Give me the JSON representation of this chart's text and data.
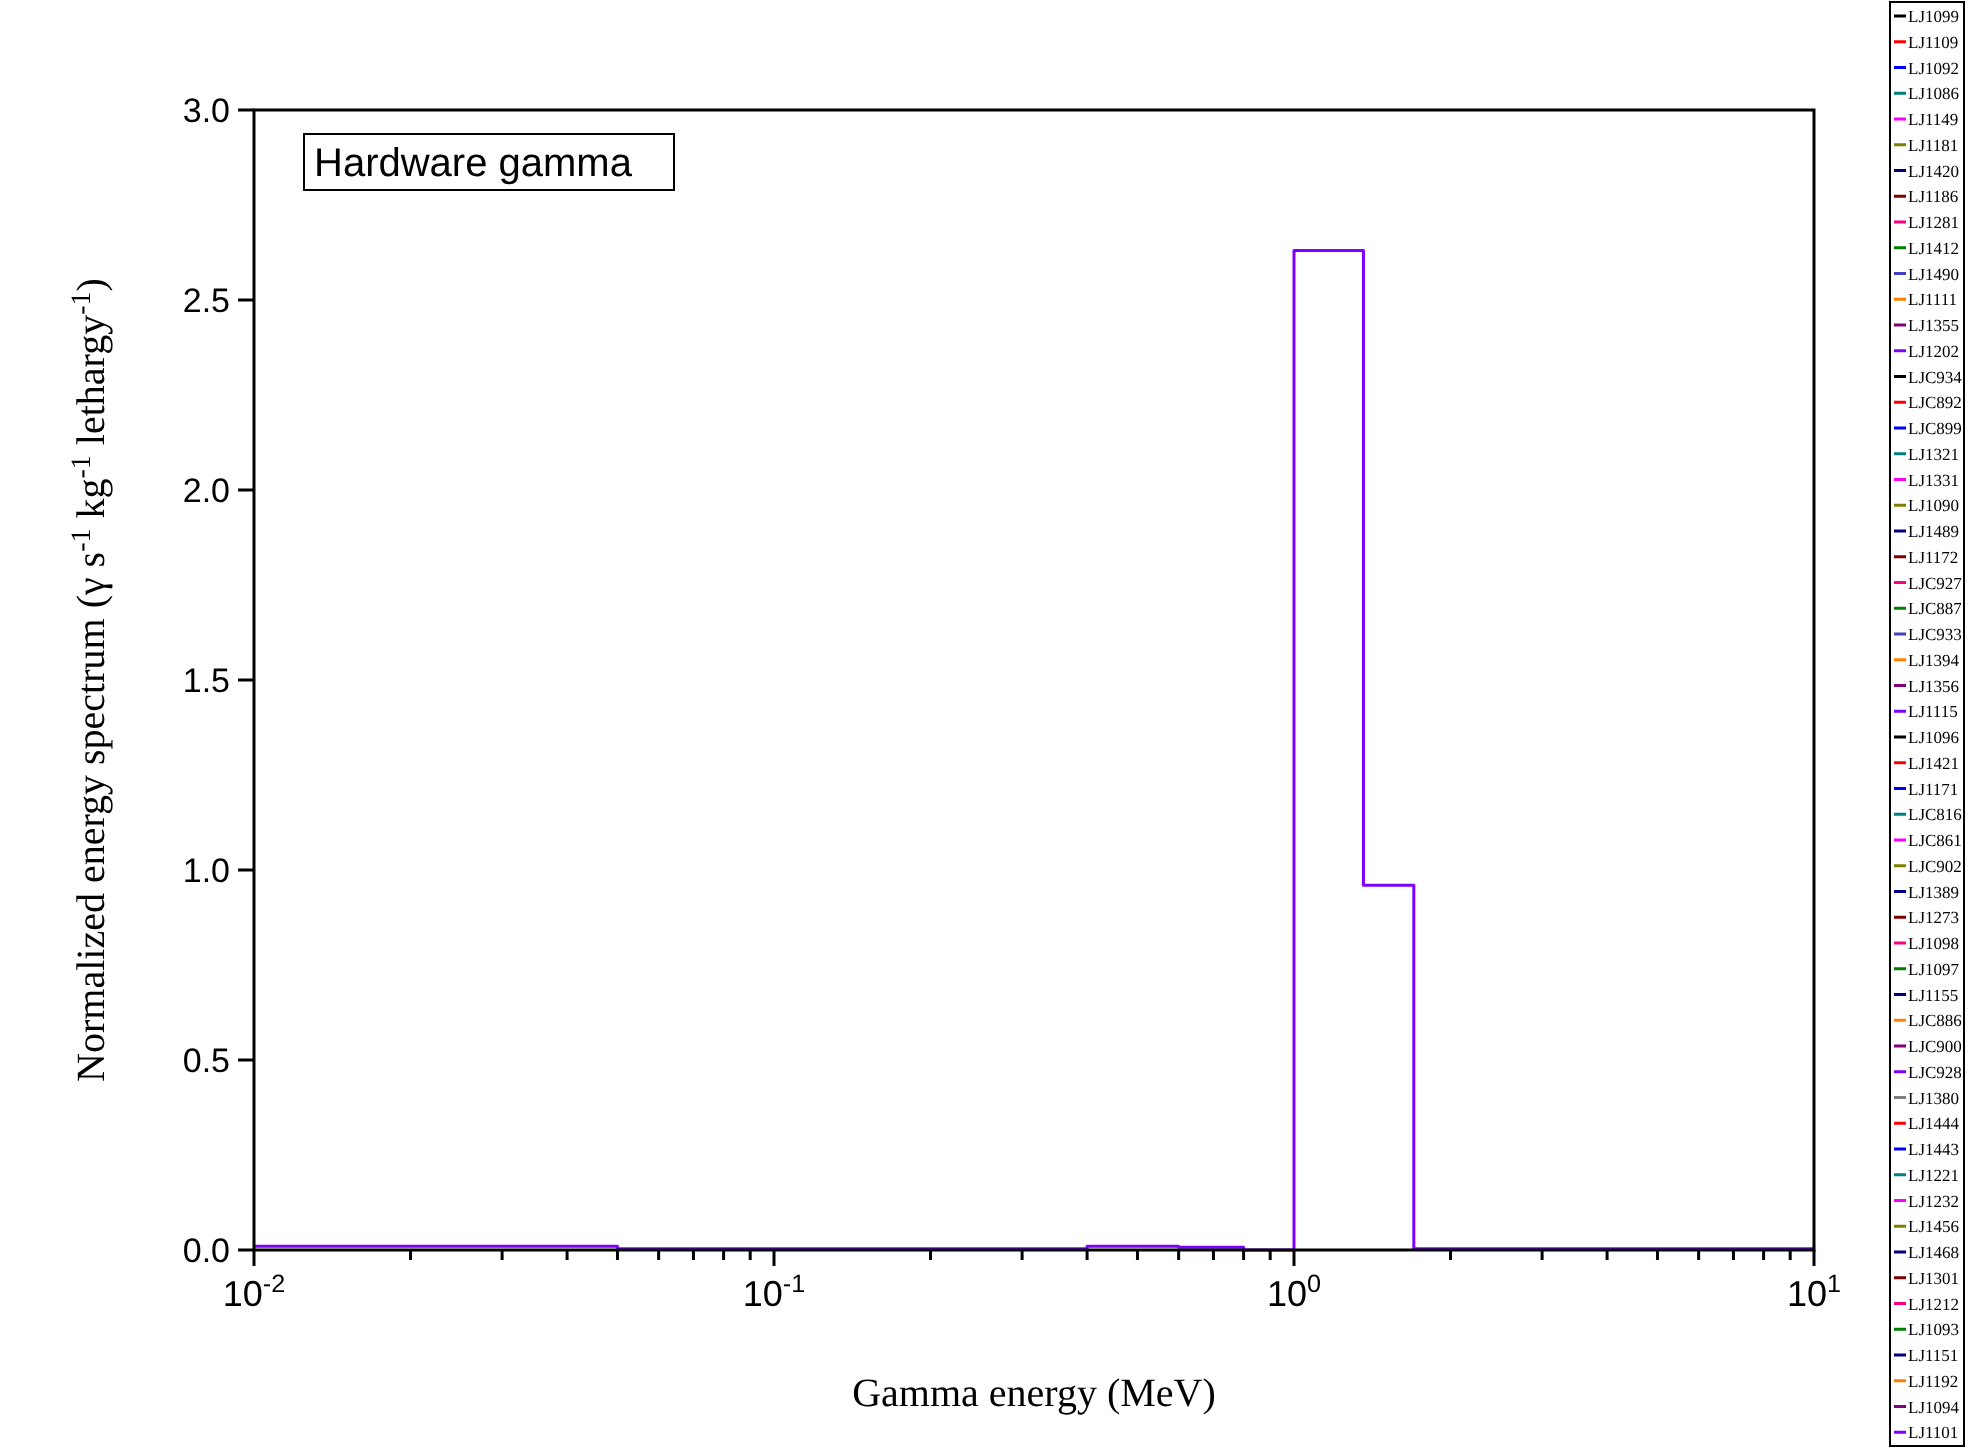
{
  "chart_data": {
    "type": "step",
    "xlabel": "Gamma energy (MeV)",
    "ylabel": "Normalized energy spectrum (γ s$^{-1}$ kg$^{-1}$ lethargy$^{-1}$)",
    "annotations": [
      "Hardware gamma"
    ],
    "log": "x",
    "grid": false,
    "legend": "right",
    "marker": "none",
    "line_style": "solid",
    "xlim": [
      0.01,
      10
    ],
    "xticks": [
      {
        "value": 0.01,
        "label": "10$^{-2}$"
      },
      {
        "value": 0.02,
        "label": null
      },
      {
        "value": 0.03,
        "label": null
      },
      {
        "value": 0.04,
        "label": null
      },
      {
        "value": 0.05,
        "label": null
      },
      {
        "value": 0.06,
        "label": null
      },
      {
        "value": 0.07,
        "label": null
      },
      {
        "value": 0.08,
        "label": null
      },
      {
        "value": 0.09,
        "label": null
      },
      {
        "value": 0.1,
        "label": "10$^{-1}$"
      },
      {
        "value": 0.2,
        "label": null
      },
      {
        "value": 0.3,
        "label": null
      },
      {
        "value": 0.4,
        "label": null
      },
      {
        "value": 0.5,
        "label": null
      },
      {
        "value": 0.6,
        "label": null
      },
      {
        "value": 0.7,
        "label": null
      },
      {
        "value": 0.8,
        "label": null
      },
      {
        "value": 0.9,
        "label": null
      },
      {
        "value": 1,
        "label": "10$^{0}$"
      },
      {
        "value": 2,
        "label": null
      },
      {
        "value": 3,
        "label": null
      },
      {
        "value": 4,
        "label": null
      },
      {
        "value": 5,
        "label": null
      },
      {
        "value": 6,
        "label": null
      },
      {
        "value": 7,
        "label": null
      },
      {
        "value": 8,
        "label": null
      },
      {
        "value": 9,
        "label": null
      },
      {
        "value": 10,
        "label": "10$^{1}$"
      }
    ],
    "ylim": [
      0,
      3
    ],
    "yticks": [
      {
        "value": 0,
        "label": "0.0"
      },
      {
        "value": 0.5,
        "label": "0.5"
      },
      {
        "value": 1,
        "label": "1.0"
      },
      {
        "value": 1.5,
        "label": "1.5"
      },
      {
        "value": 2,
        "label": "2.0"
      },
      {
        "value": 2.5,
        "label": "2.5"
      },
      {
        "value": 3,
        "label": "3.0"
      }
    ],
    "x": [
      0.01,
      0.05,
      0.4,
      0.6,
      0.8,
      1.0,
      1.36,
      1.7,
      10
    ],
    "series": [
      {
        "name": "LJ1099",
        "color": "#000000",
        "values": [
          null,
          null,
          null,
          null,
          null,
          null,
          null,
          null,
          null
        ]
      },
      {
        "name": "LJ1109",
        "color": "#ff0000",
        "values": [
          null,
          null,
          null,
          null,
          null,
          null,
          null,
          null,
          null
        ]
      },
      {
        "name": "LJ1092",
        "color": "#0000ff",
        "values": [
          null,
          null,
          null,
          null,
          null,
          null,
          null,
          null,
          null
        ]
      },
      {
        "name": "LJ1086",
        "color": "#008080",
        "values": [
          null,
          null,
          null,
          null,
          null,
          null,
          null,
          null,
          null
        ]
      },
      {
        "name": "LJ1149",
        "color": "#ff00ff",
        "values": [
          null,
          null,
          null,
          null,
          null,
          null,
          null,
          null,
          null
        ]
      },
      {
        "name": "LJ1181",
        "color": "#808000",
        "values": [
          null,
          null,
          null,
          null,
          null,
          null,
          null,
          null,
          null
        ]
      },
      {
        "name": "LJ1420",
        "color": "#000080",
        "values": [
          null,
          null,
          null,
          null,
          null,
          null,
          null,
          null,
          null
        ]
      },
      {
        "name": "LJ1186",
        "color": "#800000",
        "values": [
          null,
          null,
          null,
          null,
          null,
          null,
          null,
          null,
          null
        ]
      },
      {
        "name": "LJ1281",
        "color": "#ff0080",
        "values": [
          null,
          null,
          null,
          null,
          null,
          null,
          null,
          null,
          null
        ]
      },
      {
        "name": "LJ1412",
        "color": "#008000",
        "values": [
          null,
          null,
          null,
          null,
          null,
          null,
          null,
          null,
          null
        ]
      },
      {
        "name": "LJ1490",
        "color": "#4040c0",
        "values": [
          null,
          null,
          null,
          null,
          null,
          null,
          null,
          null,
          null
        ]
      },
      {
        "name": "LJ1111",
        "color": "#ff8000",
        "values": [
          null,
          null,
          null,
          null,
          null,
          null,
          null,
          null,
          null
        ]
      },
      {
        "name": "LJ1355",
        "color": "#800080",
        "values": [
          null,
          null,
          null,
          null,
          null,
          null,
          null,
          null,
          null
        ]
      },
      {
        "name": "LJ1202",
        "color": "#8000ff",
        "values": [
          null,
          null,
          null,
          null,
          null,
          null,
          null,
          null,
          null
        ]
      },
      {
        "name": "LJC934",
        "color": "#000000",
        "values": [
          null,
          null,
          null,
          null,
          null,
          null,
          null,
          null,
          null
        ]
      },
      {
        "name": "LJC892",
        "color": "#ff0000",
        "values": [
          null,
          null,
          null,
          null,
          null,
          null,
          null,
          null,
          null
        ]
      },
      {
        "name": "LJC899",
        "color": "#0000ff",
        "values": [
          null,
          null,
          null,
          null,
          null,
          null,
          null,
          null,
          null
        ]
      },
      {
        "name": "LJ1321",
        "color": "#008080",
        "values": [
          null,
          null,
          null,
          null,
          null,
          null,
          null,
          null,
          null
        ]
      },
      {
        "name": "LJ1331",
        "color": "#ff00ff",
        "values": [
          null,
          null,
          null,
          null,
          null,
          null,
          null,
          null,
          null
        ]
      },
      {
        "name": "LJ1090",
        "color": "#808000",
        "values": [
          null,
          null,
          null,
          null,
          null,
          null,
          null,
          null,
          null
        ]
      },
      {
        "name": "LJ1489",
        "color": "#000080",
        "values": [
          null,
          null,
          null,
          null,
          null,
          null,
          null,
          null,
          null
        ]
      },
      {
        "name": "LJ1172",
        "color": "#800000",
        "values": [
          null,
          null,
          null,
          null,
          null,
          null,
          null,
          null,
          null
        ]
      },
      {
        "name": "LJC927",
        "color": "#ff0080",
        "values": [
          null,
          null,
          null,
          null,
          null,
          null,
          null,
          null,
          null
        ]
      },
      {
        "name": "LJC887",
        "color": "#008000",
        "values": [
          null,
          null,
          null,
          null,
          null,
          null,
          null,
          null,
          null
        ]
      },
      {
        "name": "LJC933",
        "color": "#4040c0",
        "values": [
          null,
          null,
          null,
          null,
          null,
          null,
          null,
          null,
          null
        ]
      },
      {
        "name": "LJ1394",
        "color": "#ff8000",
        "values": [
          null,
          null,
          null,
          null,
          null,
          null,
          null,
          null,
          null
        ]
      },
      {
        "name": "LJ1356",
        "color": "#800080",
        "values": [
          null,
          null,
          null,
          null,
          null,
          null,
          null,
          null,
          null
        ]
      },
      {
        "name": "LJ1115",
        "color": "#8000ff",
        "values": [
          null,
          null,
          null,
          null,
          null,
          null,
          null,
          null,
          null
        ]
      },
      {
        "name": "LJ1096",
        "color": "#000000",
        "values": [
          null,
          null,
          null,
          null,
          null,
          null,
          null,
          null,
          null
        ]
      },
      {
        "name": "LJ1421",
        "color": "#ff0000",
        "values": [
          null,
          null,
          null,
          null,
          null,
          null,
          null,
          null,
          null
        ]
      },
      {
        "name": "LJ1171",
        "color": "#0000ff",
        "values": [
          null,
          null,
          null,
          null,
          null,
          null,
          null,
          null,
          null
        ]
      },
      {
        "name": "LJC816",
        "color": "#008080",
        "values": [
          null,
          null,
          null,
          null,
          null,
          null,
          null,
          null,
          null
        ]
      },
      {
        "name": "LJC861",
        "color": "#ff00ff",
        "values": [
          null,
          null,
          null,
          null,
          null,
          null,
          null,
          null,
          null
        ]
      },
      {
        "name": "LJC902",
        "color": "#808000",
        "values": [
          null,
          null,
          null,
          null,
          null,
          null,
          null,
          null,
          null
        ]
      },
      {
        "name": "LJ1389",
        "color": "#000080",
        "values": [
          null,
          null,
          null,
          null,
          null,
          null,
          null,
          null,
          null
        ]
      },
      {
        "name": "LJ1273",
        "color": "#800000",
        "values": [
          null,
          null,
          null,
          null,
          null,
          null,
          null,
          null,
          null
        ]
      },
      {
        "name": "LJ1098",
        "color": "#ff0080",
        "values": [
          null,
          null,
          null,
          null,
          null,
          null,
          null,
          null,
          null
        ]
      },
      {
        "name": "LJ1097",
        "color": "#008000",
        "values": [
          null,
          null,
          null,
          null,
          null,
          null,
          null,
          null,
          null
        ]
      },
      {
        "name": "LJ1155",
        "color": "#000080",
        "values": [
          null,
          null,
          null,
          null,
          null,
          null,
          null,
          null,
          null
        ]
      },
      {
        "name": "LJC886",
        "color": "#ff8000",
        "values": [
          null,
          null,
          null,
          null,
          null,
          null,
          null,
          null,
          null
        ]
      },
      {
        "name": "LJC900",
        "color": "#800080",
        "values": [
          null,
          null,
          null,
          null,
          null,
          null,
          null,
          null,
          null
        ]
      },
      {
        "name": "LJC928",
        "color": "#8000ff",
        "values": [
          null,
          null,
          null,
          null,
          null,
          null,
          null,
          null,
          null
        ]
      },
      {
        "name": "LJ1380",
        "color": "#808080",
        "values": [
          null,
          null,
          null,
          null,
          null,
          null,
          null,
          null,
          null
        ]
      },
      {
        "name": "LJ1444",
        "color": "#ff0000",
        "values": [
          null,
          null,
          null,
          null,
          null,
          null,
          null,
          null,
          null
        ]
      },
      {
        "name": "LJ1443",
        "color": "#0000ff",
        "values": [
          null,
          null,
          null,
          null,
          null,
          null,
          null,
          null,
          null
        ]
      },
      {
        "name": "LJ1221",
        "color": "#008080",
        "values": [
          null,
          null,
          null,
          null,
          null,
          null,
          null,
          null,
          null
        ]
      },
      {
        "name": "LJ1232",
        "color": "#ff00ff",
        "values": [
          null,
          null,
          null,
          null,
          null,
          null,
          null,
          null,
          null
        ]
      },
      {
        "name": "LJ1456",
        "color": "#808000",
        "values": [
          null,
          null,
          null,
          null,
          null,
          null,
          null,
          null,
          null
        ]
      },
      {
        "name": "LJ1468",
        "color": "#000080",
        "values": [
          null,
          null,
          null,
          null,
          null,
          null,
          null,
          null,
          null
        ]
      },
      {
        "name": "LJ1301",
        "color": "#800000",
        "values": [
          null,
          null,
          null,
          null,
          null,
          null,
          null,
          null,
          null
        ]
      },
      {
        "name": "LJ1212",
        "color": "#ff0080",
        "values": [
          null,
          null,
          null,
          null,
          null,
          null,
          null,
          null,
          null
        ]
      },
      {
        "name": "LJ1093",
        "color": "#008000",
        "values": [
          null,
          null,
          null,
          null,
          null,
          null,
          null,
          null,
          null
        ]
      },
      {
        "name": "LJ1151",
        "color": "#000080",
        "values": [
          null,
          null,
          null,
          null,
          null,
          null,
          null,
          null,
          null
        ]
      },
      {
        "name": "LJ1192",
        "color": "#ff8000",
        "values": [
          null,
          null,
          null,
          null,
          null,
          null,
          null,
          null,
          null
        ]
      },
      {
        "name": "LJ1094",
        "color": "#800080",
        "values": [
          null,
          null,
          null,
          null,
          null,
          null,
          null,
          null,
          null
        ]
      },
      {
        "name": "LJ1101",
        "color": "#8000ff",
        "values": [
          0.01,
          0.003,
          0.01,
          0.007,
          0,
          2.63,
          0.96,
          0.003,
          0.003
        ]
      }
    ]
  }
}
